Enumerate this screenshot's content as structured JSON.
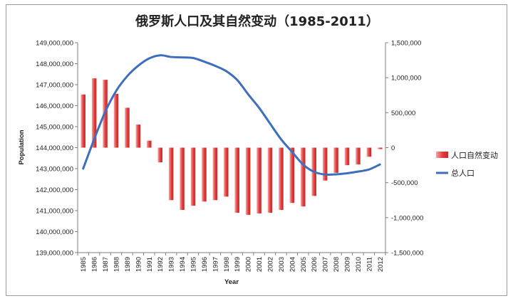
{
  "chart_data": {
    "type": "bar+line",
    "title": "俄罗斯人口及其自然变动（1985-2011）",
    "xlabel": "Year",
    "ylabel": "Population",
    "categories": [
      "1985",
      "1986",
      "1987",
      "1988",
      "1989",
      "1990",
      "1991",
      "1992",
      "1993",
      "1994",
      "1995",
      "1996",
      "1997",
      "1998",
      "1999",
      "2000",
      "2001",
      "2002",
      "2003",
      "2004",
      "2005",
      "2006",
      "2007",
      "2008",
      "2009",
      "2010",
      "2011",
      "2012"
    ],
    "left_axis": {
      "min": 139000000,
      "max": 149000000,
      "ticks": [
        "139,000,000",
        "140,000,000",
        "141,000,000",
        "142,000,000",
        "143,000,000",
        "144,000,000",
        "145,000,000",
        "146,000,000",
        "147,000,000",
        "148,000,000",
        "149,000,000"
      ]
    },
    "right_axis": {
      "min": -1500000,
      "max": 1500000,
      "ticks": [
        "-1,500,000",
        "-1,000,000",
        "-500,000",
        "0",
        "500,000",
        "1,000,000",
        "1,500,000"
      ]
    },
    "series": [
      {
        "name": "人口自然变动",
        "kind": "bar",
        "axis": "right",
        "color": "#e23b3b",
        "values": [
          760000,
          990000,
          970000,
          770000,
          570000,
          330000,
          100000,
          -210000,
          -750000,
          -890000,
          -830000,
          -770000,
          -750000,
          -700000,
          -930000,
          -960000,
          -940000,
          -930000,
          -890000,
          -790000,
          -840000,
          -690000,
          -470000,
          -360000,
          -250000,
          -240000,
          -130000,
          -20000
        ]
      },
      {
        "name": "总人口",
        "kind": "line",
        "axis": "left",
        "color": "#3d6fbe",
        "values": [
          143000000,
          144400000,
          145700000,
          146700000,
          147400000,
          147900000,
          148250000,
          148400000,
          148320000,
          148300000,
          148270000,
          148100000,
          147900000,
          147650000,
          147230000,
          146550000,
          145900000,
          145150000,
          144400000,
          143800000,
          143200000,
          142850000,
          142720000,
          142730000,
          142780000,
          142860000,
          142960000,
          143200000
        ]
      }
    ],
    "legend_position": "right",
    "grid": false
  }
}
